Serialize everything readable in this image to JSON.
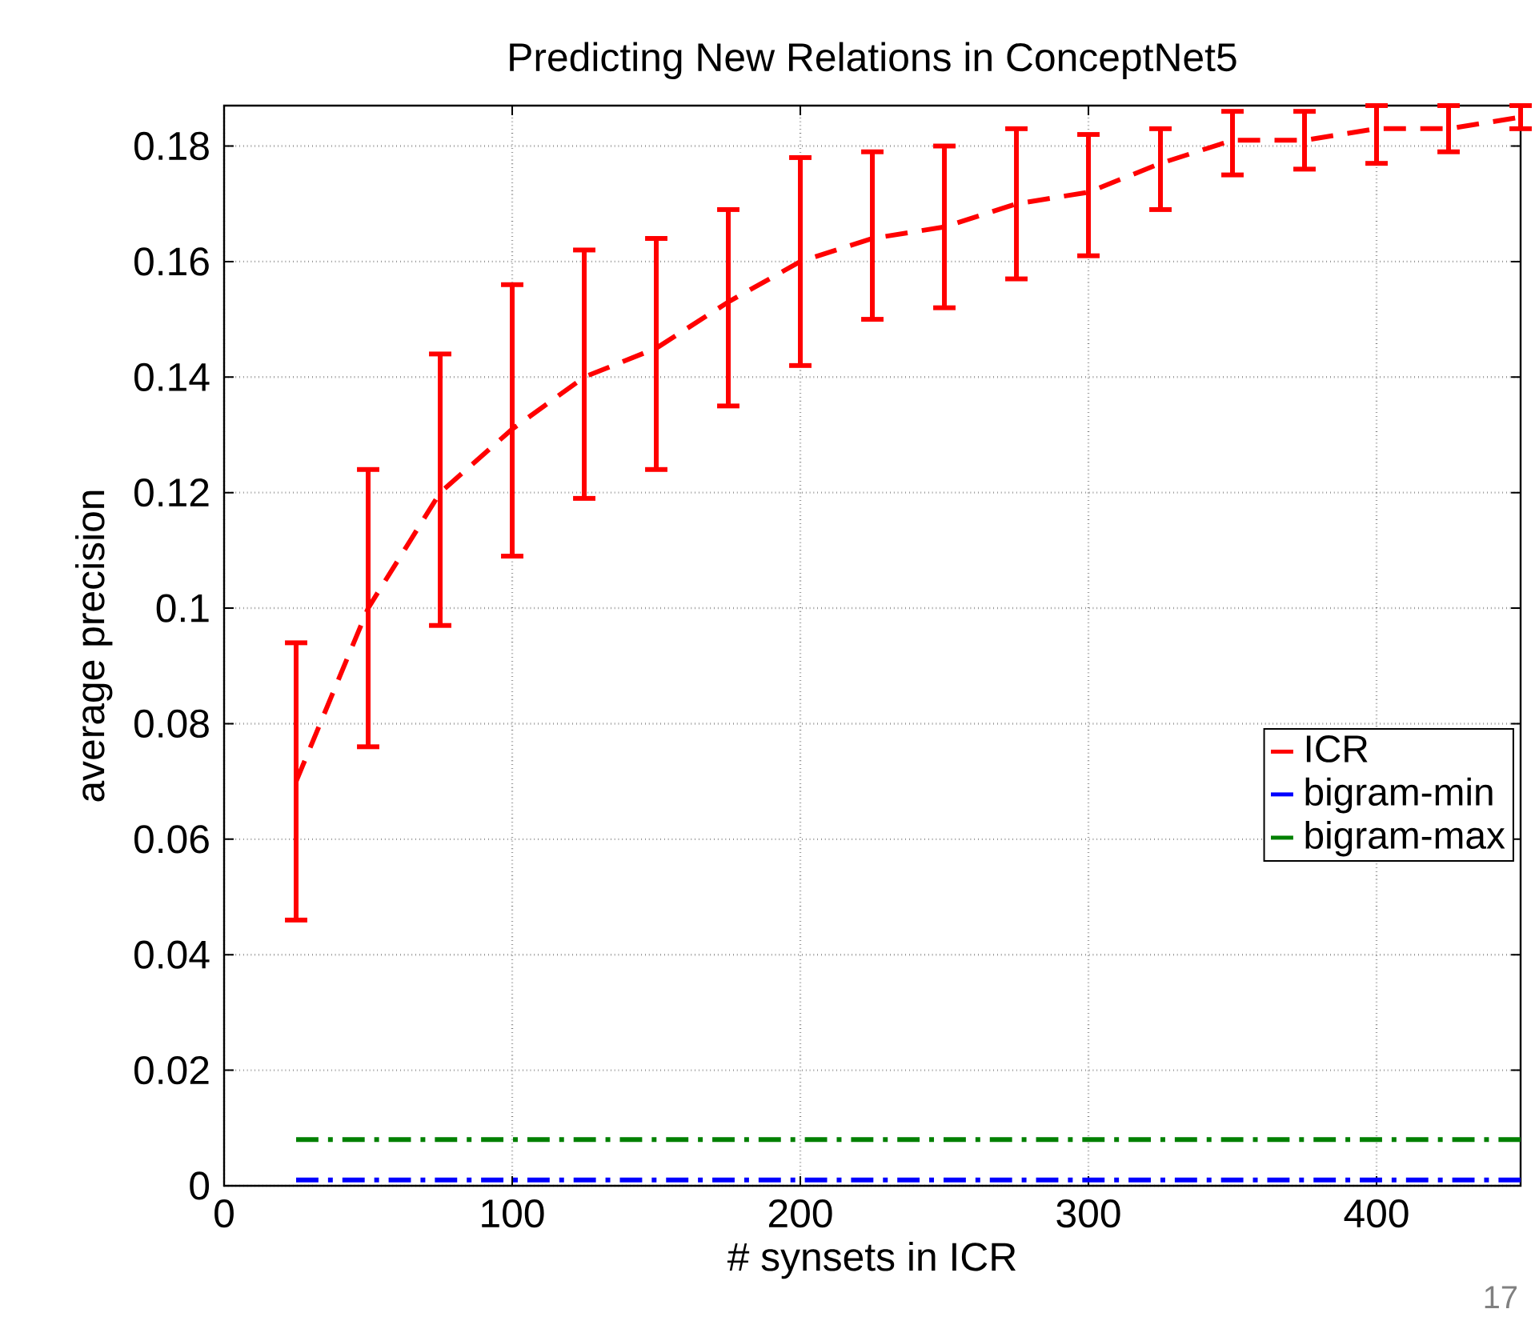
{
  "chart_data": {
    "type": "line",
    "title": "Predicting New Relations in ConceptNet5",
    "xlabel": "# synsets in ICR",
    "ylabel": "average precision",
    "xlim": [
      0,
      450
    ],
    "ylim": [
      0,
      0.187
    ],
    "xticks": [
      0,
      100,
      200,
      300,
      400
    ],
    "yticks": [
      0,
      0.02,
      0.04,
      0.06,
      0.08,
      0.1,
      0.12,
      0.14,
      0.16,
      0.18
    ],
    "grid": true,
    "legend": "right",
    "marker": "none",
    "series": [
      {
        "name": "ICR",
        "color": "#ff0000",
        "line_style": "dashed",
        "x": [
          25,
          50,
          75,
          100,
          125,
          150,
          175,
          200,
          225,
          250,
          275,
          300,
          325,
          350,
          375,
          400,
          425,
          450
        ],
        "values": [
          0.07,
          0.1,
          0.12,
          0.131,
          0.14,
          0.145,
          0.153,
          0.16,
          0.164,
          0.166,
          0.17,
          0.172,
          0.177,
          0.181,
          0.181,
          0.183,
          0.183,
          0.185
        ],
        "errors": [
          [
            0.046,
            0.094
          ],
          [
            0.076,
            0.124
          ],
          [
            0.097,
            0.144
          ],
          [
            0.109,
            0.156
          ],
          [
            0.119,
            0.162
          ],
          [
            0.124,
            0.164
          ],
          [
            0.135,
            0.169
          ],
          [
            0.142,
            0.178
          ],
          [
            0.15,
            0.179
          ],
          [
            0.152,
            0.18
          ],
          [
            0.157,
            0.183
          ],
          [
            0.161,
            0.182
          ],
          [
            0.169,
            0.183
          ],
          [
            0.175,
            0.186
          ],
          [
            0.176,
            0.186
          ],
          [
            0.177,
            0.187
          ],
          [
            0.179,
            0.187
          ],
          [
            0.183,
            0.187
          ]
        ]
      },
      {
        "name": "bigram-min",
        "color": "#0000ff",
        "line_style": "dashdot",
        "x": [
          25,
          450
        ],
        "values": [
          0.001,
          0.001
        ]
      },
      {
        "name": "bigram-max",
        "color": "#008000",
        "line_style": "dashdot",
        "x": [
          25,
          450
        ],
        "values": [
          0.008,
          0.008
        ]
      }
    ],
    "annotations": [
      "17"
    ]
  }
}
